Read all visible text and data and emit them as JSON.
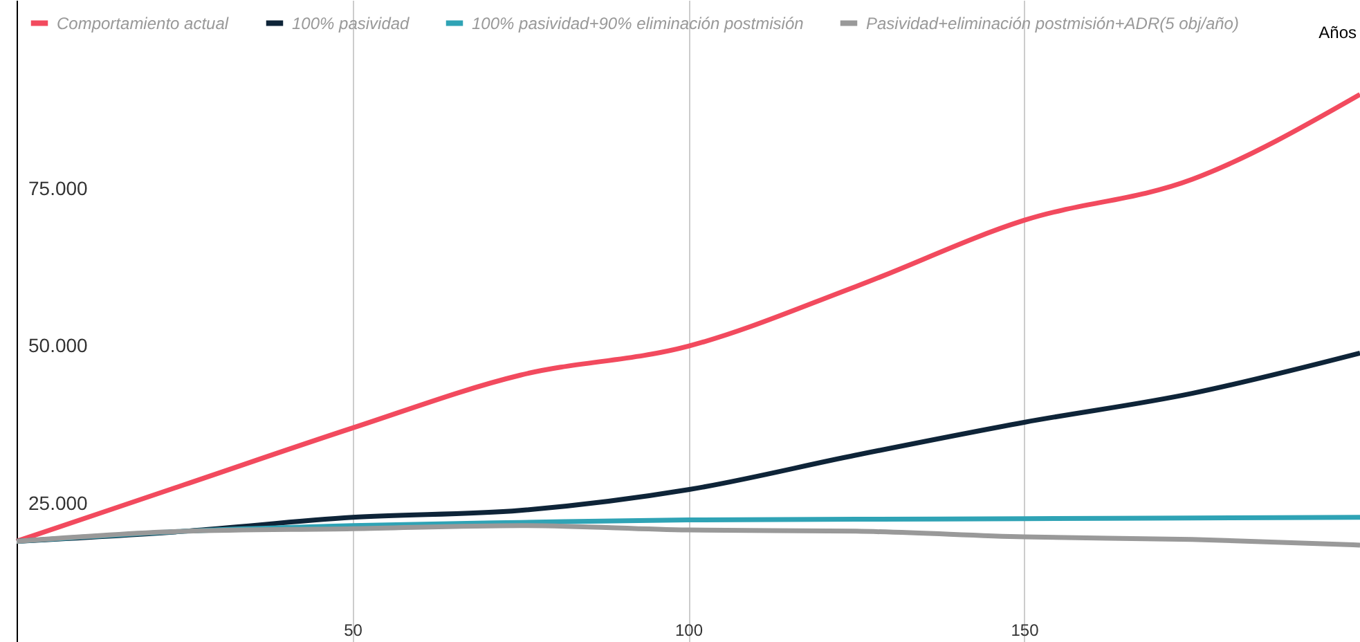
{
  "chart_data": {
    "type": "line",
    "xlabel": "Años",
    "x": [
      0,
      25,
      50,
      75,
      100,
      125,
      150,
      175,
      200
    ],
    "series": [
      {
        "name": "Comportamiento actual",
        "color": "#f24a5e",
        "values": [
          19000,
          28000,
          37000,
          45400,
          50000,
          59500,
          70000,
          76500,
          90000
        ]
      },
      {
        "name": "100% pasividad",
        "color": "#0e2438",
        "values": [
          19000,
          20600,
          22800,
          23900,
          27200,
          32700,
          37900,
          42500,
          48900
        ]
      },
      {
        "name": "100% pasividad+90% eliminación postmisión",
        "color": "#2fa3b5",
        "values": [
          19000,
          20600,
          21500,
          22000,
          22400,
          22500,
          22600,
          22700,
          22800
        ]
      },
      {
        "name": "Pasividad+eliminación postmisión+ADR(5 obj/año)",
        "color": "#999999",
        "values": [
          19000,
          20600,
          21000,
          21500,
          20800,
          20600,
          19700,
          19300,
          18400
        ]
      }
    ],
    "xlim": [
      0,
      200
    ],
    "xticks": [
      50,
      100,
      150
    ],
    "ylim": [
      3000,
      105000
    ],
    "yticks": [
      {
        "value": 25000,
        "label": "25.000"
      },
      {
        "value": 50000,
        "label": "50.000"
      },
      {
        "value": 75000,
        "label": "75.000"
      }
    ],
    "grid": "x",
    "legend": "top left",
    "marker": "none",
    "line_style": "solid"
  }
}
